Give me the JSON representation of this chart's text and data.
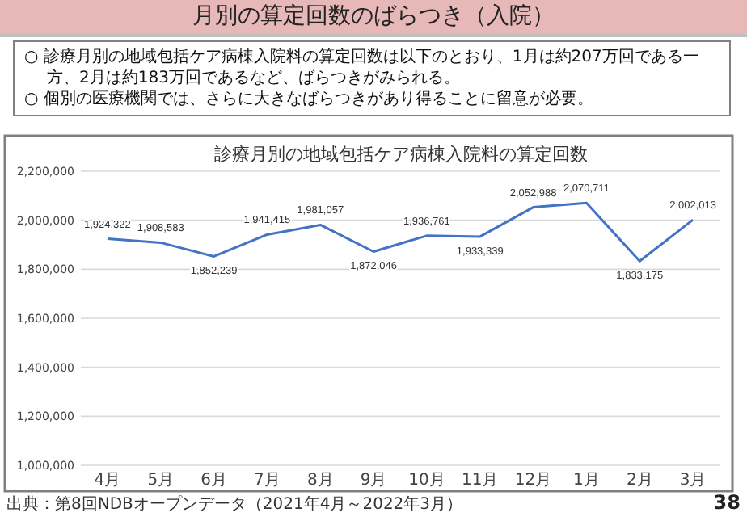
{
  "chart_data": {
    "type": "line",
    "title": "月別の算定回数のばらつき（入院）",
    "subtitle": "診療月別の地域包括ケア病棟入院料の算定回数",
    "annotations": [
      "○ 診療月別の地域包括ケア病棟入院料の算定回数は以下のとおり、1月は約207万回である一方、2月は約183万回であるなど、ばらつきがみられる。",
      "○ 個別の医療機関では、さらに大きなばらつきがあり得ることに留意が必要。",
      "出典：第8回NDBオープンデータ（2021年4月～2022年3月）",
      "38"
    ],
    "categories": [
      "4月",
      "5月",
      "6月",
      "7月",
      "8月",
      "9月",
      "10月",
      "11月",
      "12月",
      "1月",
      "2月",
      "3月"
    ],
    "series": [
      {
        "color": "#4472c4",
        "values": [
          1924322,
          1908583,
          1852239,
          1941415,
          1981057,
          1872046,
          1936761,
          1933339,
          2052988,
          2070711,
          1833175,
          2002013
        ]
      }
    ],
    "ylim": [
      1000000,
      2200000
    ],
    "yticks": [
      {
        "value": 1000000,
        "label": "1,000,000"
      },
      {
        "value": 1200000,
        "label": "1,200,000"
      },
      {
        "value": 1400000,
        "label": "1,400,000"
      },
      {
        "value": 1600000,
        "label": "1,600,000"
      },
      {
        "value": 1800000,
        "label": "1,800,000"
      },
      {
        "value": 2000000,
        "label": "2,000,000"
      },
      {
        "value": 2200000,
        "label": "2,200,000"
      }
    ],
    "grid": "y",
    "value_labels": [
      "1,924,322",
      "1,908,583",
      "1,852,239",
      "1,941,415",
      "1,981,057",
      "1,872,046",
      "1,936,761",
      "1,933,339",
      "2,052,988",
      "2,070,711",
      "1,833,175",
      "2,002,013"
    ]
  }
}
